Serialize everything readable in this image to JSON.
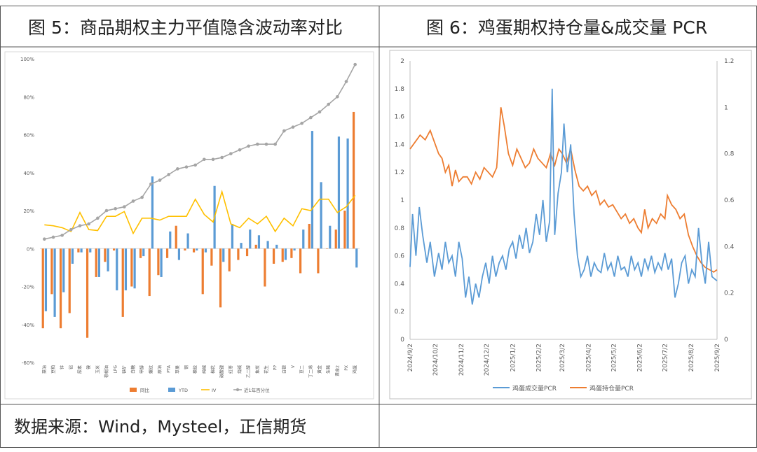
{
  "panel_left": {
    "title": "图 5：商品期权主力平值隐含波动率对比"
  },
  "panel_right": {
    "title": "图 6：鸡蛋期权持仓量&成交量 PCR"
  },
  "source": "数据来源：Wind，Mysteel，正信期货",
  "colors": {
    "orange": "#ED7D31",
    "blue": "#5B9BD5",
    "yellow": "#FFC000",
    "gray": "#A5A5A5",
    "border": "#555555"
  },
  "chart_data": [
    {
      "type": "bar",
      "categories": [
        "菜油",
        "豆粕",
        "锌",
        "铝",
        "尿素",
        "镍",
        "玉米",
        "棕榈油",
        "LPG",
        "铁矿",
        "白糖",
        "甲醇",
        "螺纹",
        "原油",
        "PTA",
        "苹果",
        "钢",
        "橡胶",
        "纯碱",
        "棉花",
        "碳酸锂",
        "红枣",
        "烧碱",
        "乙二醇",
        "焦炭",
        "花生",
        "PP",
        "白银",
        "V",
        "豆二",
        "丁二烯",
        "黄金",
        "生猪",
        "黄金2",
        "PX",
        "鸡蛋"
      ],
      "tick_labels": [
        "菜油",
        "豆粕",
        "锌",
        "铝",
        "尿素",
        "镍",
        "玉米",
        "棕榈油",
        "LPG",
        "铁矿",
        "白糖",
        "甲醇",
        "螺纹",
        "原油",
        "PTA",
        "苹果",
        "钢",
        "橡胶",
        "纯碱",
        "棉花",
        "碳酸锂",
        "红枣",
        "烧碱",
        "乙二醇",
        "焦炭",
        "花生",
        "PP",
        "白银",
        "V",
        "豆二",
        "丁二烯",
        "黄金",
        "生猪",
        "黄金2",
        "PX",
        "鸡蛋"
      ],
      "series": [
        {
          "name": "同比",
          "values": [
            -42,
            -24,
            -42,
            -34,
            -2,
            -47,
            -15,
            -7,
            -1,
            -36,
            -20,
            -5,
            -25,
            -14,
            -5,
            12,
            -1,
            -2,
            -24,
            -9,
            -31,
            -12,
            -6,
            -4,
            2,
            -20,
            -8,
            -7,
            -5,
            -13,
            13,
            -13,
            0,
            10,
            20,
            72
          ]
        },
        {
          "name": "YTD",
          "values": [
            -33,
            -36,
            -23,
            -8,
            -2,
            -2,
            -15,
            -12,
            -22,
            -22,
            -21,
            -4,
            38,
            -15,
            9,
            -6,
            8,
            -1,
            -2,
            33,
            -7,
            13,
            3,
            10,
            7,
            4,
            2,
            -6,
            -1,
            10,
            62,
            35,
            12,
            59,
            58,
            -10
          ]
        },
        {
          "name": "IV",
          "values": [
            12.5,
            12,
            11,
            9,
            19,
            10,
            9.5,
            17,
            17,
            19.5,
            8,
            16,
            16,
            15,
            17,
            17,
            17,
            26,
            18,
            14,
            30,
            13,
            11,
            16,
            13,
            17,
            9,
            16,
            12,
            21,
            20,
            26,
            26,
            19,
            22,
            28
          ]
        },
        {
          "name": "近1年百分位",
          "values": [
            5,
            6,
            7,
            10,
            12,
            13,
            16,
            20,
            21,
            22,
            25,
            27,
            34,
            36,
            39,
            42,
            43,
            44,
            47,
            47,
            48,
            50,
            52,
            54,
            55,
            55,
            55,
            62,
            64,
            66,
            69,
            72,
            76,
            80,
            88,
            97
          ]
        }
      ],
      "ylim": [
        -60,
        100
      ],
      "yticks": [
        "100%",
        "80%",
        "60%",
        "40%",
        "20%",
        "0%",
        "-20%",
        "-40%",
        "-60%"
      ],
      "legend": [
        "同比",
        "YTD",
        "IV",
        "近1年百分位"
      ]
    },
    {
      "type": "line",
      "x_range": [
        "2024/9/2",
        "2025/9/2"
      ],
      "xticks": [
        "2024/9/2",
        "2024/10/2",
        "2024/11/2",
        "2024/12/2",
        "2025/1/2",
        "2025/2/2",
        "2025/3/2",
        "2025/4/2",
        "2025/5/2",
        "2025/6/2",
        "2025/7/2",
        "2025/8/2",
        "2025/9/2"
      ],
      "y_left": {
        "lim": [
          0,
          2
        ],
        "ticks": [
          "2",
          "1.8",
          "1.6",
          "1.4",
          "1.2",
          "1",
          "0.8",
          "0.6",
          "0.4",
          "0.2",
          "0"
        ]
      },
      "y_right": {
        "lim": [
          0,
          1.2
        ],
        "ticks": [
          "1.2",
          "1",
          "0.8",
          "0.6",
          "0.4",
          "0.2",
          "0"
        ]
      },
      "series": [
        {
          "name": "鸡蛋成交量PCR",
          "axis": "left",
          "points": [
            [
              "2024/9/2",
              0.52
            ],
            [
              "2024/9/5",
              0.9
            ],
            [
              "2024/9/9",
              0.6
            ],
            [
              "2024/9/13",
              0.95
            ],
            [
              "2024/9/17",
              0.75
            ],
            [
              "2024/9/22",
              0.55
            ],
            [
              "2024/9/26",
              0.7
            ],
            [
              "2024/10/1",
              0.45
            ],
            [
              "2024/10/6",
              0.62
            ],
            [
              "2024/10/10",
              0.5
            ],
            [
              "2024/10/14",
              0.7
            ],
            [
              "2024/10/18",
              0.55
            ],
            [
              "2024/10/22",
              0.6
            ],
            [
              "2024/10/26",
              0.45
            ],
            [
              "2024/10/30",
              0.7
            ],
            [
              "2024/11/3",
              0.58
            ],
            [
              "2024/11/7",
              0.3
            ],
            [
              "2024/11/11",
              0.45
            ],
            [
              "2024/11/15",
              0.25
            ],
            [
              "2024/11/19",
              0.4
            ],
            [
              "2024/11/23",
              0.3
            ],
            [
              "2024/11/27",
              0.45
            ],
            [
              "2024/12/1",
              0.55
            ],
            [
              "2024/12/5",
              0.4
            ],
            [
              "2024/12/9",
              0.6
            ],
            [
              "2024/12/13",
              0.45
            ],
            [
              "2024/12/17",
              0.55
            ],
            [
              "2024/12/21",
              0.6
            ],
            [
              "2024/12/25",
              0.5
            ],
            [
              "2024/12/29",
              0.65
            ],
            [
              "2025/1/2",
              0.7
            ],
            [
              "2025/1/6",
              0.58
            ],
            [
              "2025/1/10",
              0.75
            ],
            [
              "2025/1/14",
              0.65
            ],
            [
              "2025/1/18",
              0.8
            ],
            [
              "2025/1/22",
              0.62
            ],
            [
              "2025/1/26",
              0.7
            ],
            [
              "2025/1/30",
              0.9
            ],
            [
              "2025/2/3",
              0.75
            ],
            [
              "2025/2/7",
              1.0
            ],
            [
              "2025/2/11",
              0.7
            ],
            [
              "2025/2/15",
              0.85
            ],
            [
              "2025/2/18",
              1.8
            ],
            [
              "2025/2/21",
              0.75
            ],
            [
              "2025/2/25",
              1.05
            ],
            [
              "2025/3/1",
              1.2
            ],
            [
              "2025/3/4",
              1.55
            ],
            [
              "2025/3/8",
              1.2
            ],
            [
              "2025/3/12",
              1.4
            ],
            [
              "2025/3/16",
              0.9
            ],
            [
              "2025/3/20",
              0.6
            ],
            [
              "2025/3/24",
              0.45
            ],
            [
              "2025/3/28",
              0.5
            ],
            [
              "2025/4/1",
              0.6
            ],
            [
              "2025/4/5",
              0.45
            ],
            [
              "2025/4/9",
              0.55
            ],
            [
              "2025/4/13",
              0.5
            ],
            [
              "2025/4/17",
              0.48
            ],
            [
              "2025/4/21",
              0.62
            ],
            [
              "2025/4/25",
              0.5
            ],
            [
              "2025/4/29",
              0.55
            ],
            [
              "2025/5/3",
              0.45
            ],
            [
              "2025/5/7",
              0.6
            ],
            [
              "2025/5/11",
              0.5
            ],
            [
              "2025/5/15",
              0.52
            ],
            [
              "2025/5/19",
              0.45
            ],
            [
              "2025/5/23",
              0.6
            ],
            [
              "2025/5/27",
              0.5
            ],
            [
              "2025/5/31",
              0.55
            ],
            [
              "2025/6/4",
              0.45
            ],
            [
              "2025/6/8",
              0.58
            ],
            [
              "2025/6/12",
              0.5
            ],
            [
              "2025/6/16",
              0.6
            ],
            [
              "2025/6/20",
              0.48
            ],
            [
              "2025/6/24",
              0.55
            ],
            [
              "2025/6/28",
              0.5
            ],
            [
              "2025/7/2",
              0.62
            ],
            [
              "2025/7/6",
              0.5
            ],
            [
              "2025/7/10",
              0.58
            ],
            [
              "2025/7/14",
              0.3
            ],
            [
              "2025/7/18",
              0.4
            ],
            [
              "2025/7/22",
              0.55
            ],
            [
              "2025/7/26",
              0.6
            ],
            [
              "2025/7/30",
              0.4
            ],
            [
              "2025/8/3",
              0.5
            ],
            [
              "2025/8/7",
              0.45
            ],
            [
              "2025/8/11",
              0.8
            ],
            [
              "2025/8/15",
              0.55
            ],
            [
              "2025/8/19",
              0.4
            ],
            [
              "2025/8/23",
              0.7
            ],
            [
              "2025/8/27",
              0.45
            ],
            [
              "2025/9/2",
              0.42
            ]
          ]
        },
        {
          "name": "鸡蛋持仓量PCR",
          "axis": "right",
          "points": [
            [
              "2024/9/2",
              0.82
            ],
            [
              "2024/9/8",
              0.85
            ],
            [
              "2024/9/14",
              0.88
            ],
            [
              "2024/9/20",
              0.86
            ],
            [
              "2024/9/26",
              0.9
            ],
            [
              "2024/10/2",
              0.84
            ],
            [
              "2024/10/6",
              0.8
            ],
            [
              "2024/10/10",
              0.78
            ],
            [
              "2024/10/14",
              0.72
            ],
            [
              "2024/10/18",
              0.75
            ],
            [
              "2024/10/22",
              0.66
            ],
            [
              "2024/10/26",
              0.73
            ],
            [
              "2024/10/30",
              0.68
            ],
            [
              "2024/11/4",
              0.7
            ],
            [
              "2024/11/9",
              0.7
            ],
            [
              "2024/11/14",
              0.67
            ],
            [
              "2024/11/19",
              0.72
            ],
            [
              "2024/11/24",
              0.69
            ],
            [
              "2024/11/29",
              0.74
            ],
            [
              "2024/12/4",
              0.72
            ],
            [
              "2024/12/9",
              0.7
            ],
            [
              "2024/12/14",
              0.74
            ],
            [
              "2024/12/19",
              1.0
            ],
            [
              "2024/12/23",
              0.92
            ],
            [
              "2024/12/28",
              0.8
            ],
            [
              "2025/1/2",
              0.75
            ],
            [
              "2025/1/7",
              0.82
            ],
            [
              "2025/1/12",
              0.78
            ],
            [
              "2025/1/17",
              0.74
            ],
            [
              "2025/1/22",
              0.76
            ],
            [
              "2025/1/27",
              0.82
            ],
            [
              "2025/2/1",
              0.78
            ],
            [
              "2025/2/6",
              0.76
            ],
            [
              "2025/2/11",
              0.74
            ],
            [
              "2025/2/16",
              0.8
            ],
            [
              "2025/2/21",
              0.75
            ],
            [
              "2025/2/26",
              0.82
            ],
            [
              "2025/3/2",
              0.8
            ],
            [
              "2025/3/7",
              0.76
            ],
            [
              "2025/3/12",
              0.82
            ],
            [
              "2025/3/17",
              0.73
            ],
            [
              "2025/3/22",
              0.66
            ],
            [
              "2025/3/27",
              0.64
            ],
            [
              "2025/4/1",
              0.66
            ],
            [
              "2025/4/6",
              0.62
            ],
            [
              "2025/4/11",
              0.64
            ],
            [
              "2025/4/16",
              0.58
            ],
            [
              "2025/4/21",
              0.6
            ],
            [
              "2025/4/26",
              0.57
            ],
            [
              "2025/5/1",
              0.58
            ],
            [
              "2025/5/6",
              0.55
            ],
            [
              "2025/5/11",
              0.52
            ],
            [
              "2025/5/16",
              0.54
            ],
            [
              "2025/5/21",
              0.5
            ],
            [
              "2025/5/26",
              0.52
            ],
            [
              "2025/5/31",
              0.48
            ],
            [
              "2025/6/4",
              0.46
            ],
            [
              "2025/6/8",
              0.56
            ],
            [
              "2025/6/12",
              0.48
            ],
            [
              "2025/6/17",
              0.52
            ],
            [
              "2025/6/22",
              0.5
            ],
            [
              "2025/6/27",
              0.54
            ],
            [
              "2025/7/2",
              0.52
            ],
            [
              "2025/7/5",
              0.62
            ],
            [
              "2025/7/10",
              0.58
            ],
            [
              "2025/7/15",
              0.56
            ],
            [
              "2025/7/20",
              0.52
            ],
            [
              "2025/7/25",
              0.54
            ],
            [
              "2025/7/30",
              0.45
            ],
            [
              "2025/8/4",
              0.4
            ],
            [
              "2025/8/9",
              0.36
            ],
            [
              "2025/8/14",
              0.33
            ],
            [
              "2025/8/19",
              0.31
            ],
            [
              "2025/8/24",
              0.3
            ],
            [
              "2025/8/29",
              0.29
            ],
            [
              "2025/9/2",
              0.3
            ]
          ]
        }
      ],
      "legend": [
        "鸡蛋成交量PCR",
        "鸡蛋持仓量PCR"
      ]
    }
  ]
}
